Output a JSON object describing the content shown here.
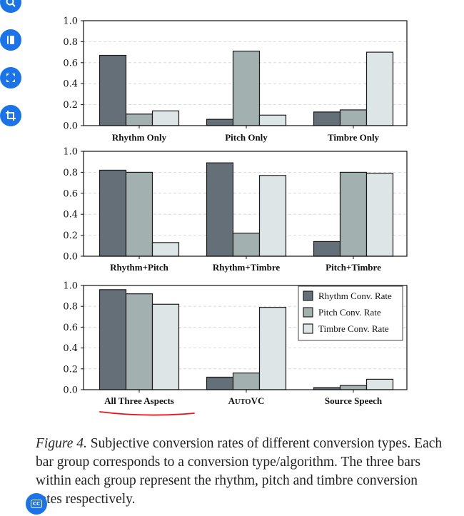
{
  "toolbar": {
    "buttons": [
      {
        "name": "zoom-search-button",
        "icon": "magnify-icon"
      },
      {
        "name": "bookmark-button",
        "icon": "bookmark-icon"
      },
      {
        "name": "fullscreen-button",
        "icon": "expand-icon"
      },
      {
        "name": "crop-button",
        "icon": "crop-icon"
      }
    ],
    "cc_label": "CC"
  },
  "colors": {
    "rhythm": "#656f78",
    "pitch": "#a2b0b0",
    "timbre": "#dde5e6",
    "annotation": "#e8141c"
  },
  "caption": {
    "figure_label": "Figure 4.",
    "text": " Subjective conversion rates of different conversion types. Each bar group corresponds to a conversion type/algorithm. The three bars within each group represent the rhythm, pitch and timbre conversion rates respectively."
  },
  "chart_data": [
    {
      "type": "bar",
      "categories": [
        "Rhythm Only",
        "Pitch Only",
        "Timbre Only"
      ],
      "series": [
        {
          "name": "Rhythm Conv. Rate",
          "values": [
            0.67,
            0.06,
            0.13
          ]
        },
        {
          "name": "Pitch Conv. Rate",
          "values": [
            0.11,
            0.71,
            0.15
          ]
        },
        {
          "name": "Timbre Conv. Rate",
          "values": [
            0.14,
            0.1,
            0.7
          ]
        }
      ],
      "yticks": [
        "0.0",
        "0.2",
        "0.4",
        "0.6",
        "0.8",
        "1.0"
      ],
      "ylim": [
        0,
        1.0
      ],
      "grid": "horizontal dashed",
      "legend": "none"
    },
    {
      "type": "bar",
      "categories": [
        "Rhythm+Pitch",
        "Rhythm+Timbre",
        "Pitch+Timbre"
      ],
      "series": [
        {
          "name": "Rhythm Conv. Rate",
          "values": [
            0.82,
            0.89,
            0.14
          ]
        },
        {
          "name": "Pitch Conv. Rate",
          "values": [
            0.8,
            0.22,
            0.8
          ]
        },
        {
          "name": "Timbre Conv. Rate",
          "values": [
            0.13,
            0.77,
            0.79
          ]
        }
      ],
      "yticks": [
        "0.0",
        "0.2",
        "0.4",
        "0.6",
        "0.8",
        "1.0"
      ],
      "ylim": [
        0,
        1.0
      ],
      "grid": "horizontal dashed",
      "legend": "none"
    },
    {
      "type": "bar",
      "categories": [
        "All Three Aspects",
        "AUTOVC",
        "Source Speech"
      ],
      "series": [
        {
          "name": "Rhythm Conv. Rate",
          "values": [
            0.96,
            0.12,
            0.02
          ]
        },
        {
          "name": "Pitch Conv. Rate",
          "values": [
            0.92,
            0.16,
            0.04
          ]
        },
        {
          "name": "Timbre Conv. Rate",
          "values": [
            0.82,
            0.79,
            0.1
          ]
        }
      ],
      "yticks": [
        "0.0",
        "0.2",
        "0.4",
        "0.6",
        "0.8",
        "1.0"
      ],
      "ylim": [
        0,
        1.0
      ],
      "grid": "horizontal dashed",
      "legend": "top-right",
      "annotation": "red underline under All Three Aspects"
    }
  ]
}
